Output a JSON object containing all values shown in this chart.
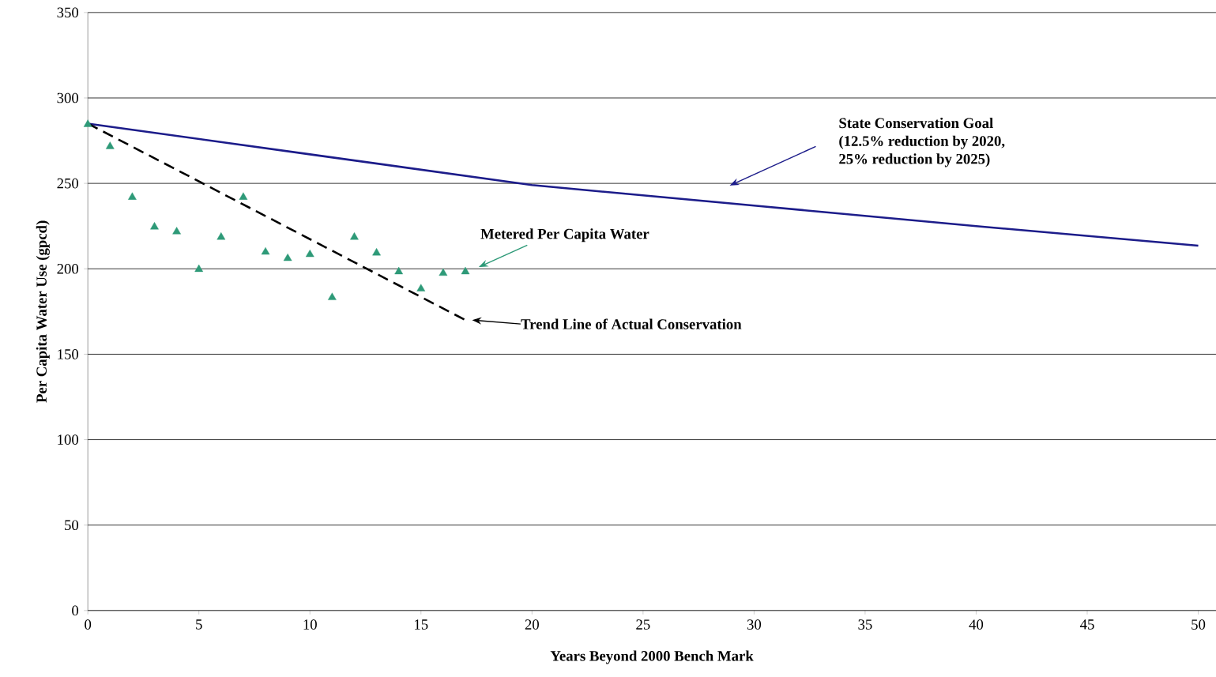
{
  "chart_data": {
    "type": "scatter",
    "xlabel": "Years Beyond 2000 Bench Mark",
    "ylabel": "Per Capita Water Use (gpcd)",
    "xlim": [
      0,
      50.8
    ],
    "xticks": [
      0,
      5,
      10,
      15,
      20,
      25,
      30,
      35,
      40,
      45,
      50
    ],
    "ylim": [
      0,
      350
    ],
    "yticks": [
      0,
      50,
      100,
      150,
      200,
      250,
      300,
      350
    ],
    "grid": "y",
    "series": [
      {
        "type": "line",
        "color": "#1c1c8a",
        "line_style": "solid",
        "marker": "none",
        "x": [
          0,
          10,
          20,
          30,
          40,
          50
        ],
        "values": [
          285,
          267,
          249,
          237,
          225,
          213.5
        ]
      },
      {
        "color": "#2e9a78",
        "marker": "triangle",
        "x": [
          0,
          1,
          2,
          3,
          4,
          5,
          6,
          7,
          8,
          9,
          10,
          11,
          12,
          13,
          14,
          15,
          16,
          17
        ],
        "values": [
          284.5,
          271.6,
          241.9,
          224.5,
          221.7,
          199.7,
          218.5,
          241.9,
          209.8,
          206.1,
          208.4,
          183.2,
          218.5,
          209.3,
          198.3,
          188.3,
          197.4,
          198.3
        ]
      },
      {
        "type": "line",
        "color": "#000000",
        "line_style": "dashed",
        "marker": "none",
        "x": [
          0,
          17
        ],
        "values": [
          285,
          170
        ]
      }
    ],
    "annotations": [
      "State Conservation Goal (12.5% reduction by 2020, 25% reduction by 2025)",
      "Metered Per Capita Water",
      "Trend Line of Actual Conservation"
    ]
  }
}
